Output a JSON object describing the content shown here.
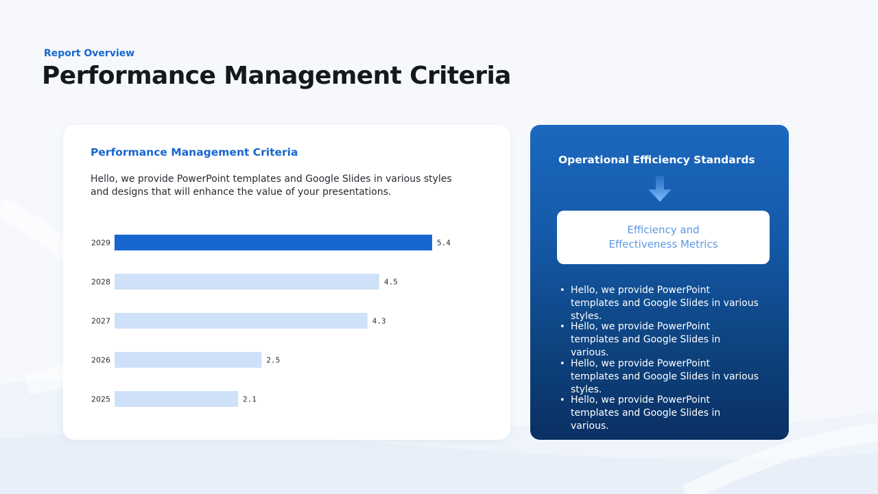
{
  "header": {
    "eyebrow": "Report Overview",
    "title": "Performance Management Criteria"
  },
  "left_card": {
    "heading": "Performance Management Criteria",
    "description": "Hello, we provide PowerPoint templates and Google Slides in various styles and designs that will enhance the value of your presentations."
  },
  "chart_data": {
    "type": "bar",
    "orientation": "horizontal",
    "categories": [
      "2029",
      "2028",
      "2027",
      "2026",
      "2025"
    ],
    "values": [
      5.4,
      4.5,
      4.3,
      2.5,
      2.1
    ],
    "value_labels": [
      "5.4",
      "4.5",
      "4.3",
      "2.5",
      "2.1"
    ],
    "highlight_index": 0,
    "highlight_color": "#1767cf",
    "bar_color": "#cfe1f9",
    "axes_visible": false,
    "grid": false
  },
  "right_panel": {
    "heading": "Operational Efficiency Standards",
    "metrics_line1": "Efficiency and",
    "metrics_line2": "Effectiveness Metrics",
    "arrow_icon": "arrow-down-icon",
    "bullets": [
      "Hello, we provide PowerPoint templates and Google Slides in various styles.",
      "Hello, we provide PowerPoint templates and Google Slides in various.",
      "Hello, we provide PowerPoint templates and Google Slides in various styles.",
      "Hello, we provide PowerPoint templates and Google Slides in various."
    ]
  },
  "colors": {
    "accent": "#1767cf",
    "title": "#15181e",
    "panel_top": "#1c68bf",
    "panel_bottom": "#0a3063",
    "metrics_text": "#5a98e2"
  }
}
